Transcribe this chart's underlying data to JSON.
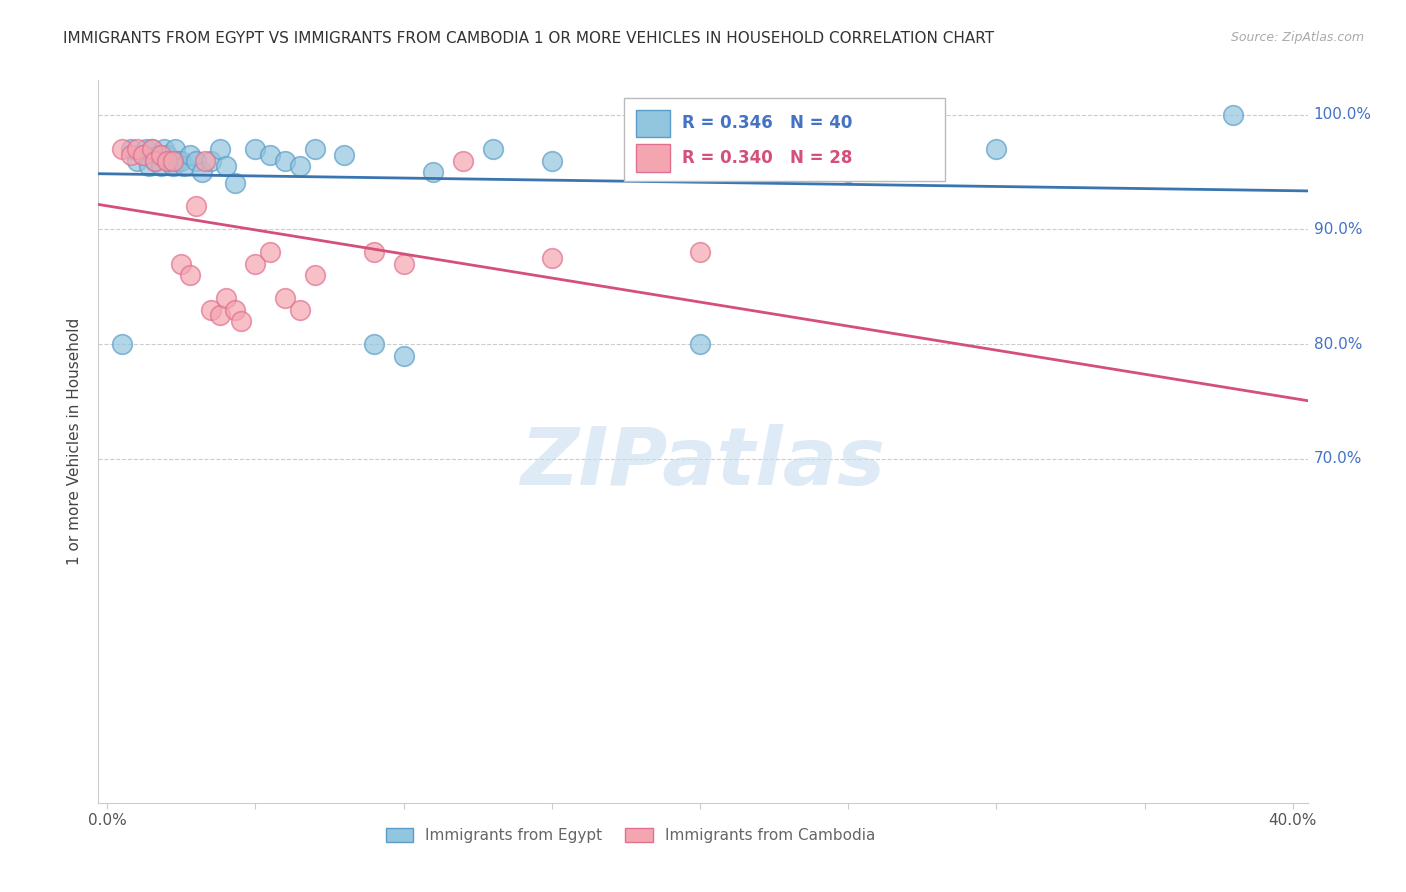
{
  "title": "IMMIGRANTS FROM EGYPT VS IMMIGRANTS FROM CAMBODIA 1 OR MORE VEHICLES IN HOUSEHOLD CORRELATION CHART",
  "source": "Source: ZipAtlas.com",
  "ylabel": "1 or more Vehicles in Household",
  "xlim": [
    0.0,
    0.4
  ],
  "ylim": [
    0.4,
    1.03
  ],
  "egypt_R": 0.346,
  "egypt_N": 40,
  "cambodia_R": 0.34,
  "cambodia_N": 28,
  "egypt_color": "#92c5de",
  "cambodia_color": "#f4a6b0",
  "egypt_edge_color": "#5b9dc9",
  "cambodia_edge_color": "#e07090",
  "egypt_line_color": "#3a75b0",
  "cambodia_line_color": "#d45078",
  "watermark_color": "#c8dff0",
  "egypt_x": [
    0.005,
    0.008,
    0.01,
    0.012,
    0.013,
    0.014,
    0.015,
    0.016,
    0.017,
    0.018,
    0.019,
    0.02,
    0.021,
    0.022,
    0.023,
    0.024,
    0.025,
    0.026,
    0.028,
    0.03,
    0.032,
    0.035,
    0.038,
    0.04,
    0.043,
    0.05,
    0.055,
    0.06,
    0.065,
    0.07,
    0.08,
    0.09,
    0.1,
    0.11,
    0.13,
    0.15,
    0.2,
    0.25,
    0.3,
    0.38
  ],
  "egypt_y": [
    0.8,
    0.97,
    0.96,
    0.965,
    0.97,
    0.955,
    0.97,
    0.96,
    0.965,
    0.955,
    0.97,
    0.965,
    0.96,
    0.955,
    0.97,
    0.96,
    0.96,
    0.955,
    0.965,
    0.96,
    0.95,
    0.96,
    0.97,
    0.955,
    0.94,
    0.97,
    0.965,
    0.96,
    0.955,
    0.97,
    0.965,
    0.8,
    0.79,
    0.95,
    0.97,
    0.96,
    0.8,
    0.95,
    0.97,
    1.0
  ],
  "cambodia_x": [
    0.005,
    0.008,
    0.01,
    0.012,
    0.015,
    0.016,
    0.018,
    0.02,
    0.022,
    0.025,
    0.028,
    0.03,
    0.033,
    0.035,
    0.038,
    0.04,
    0.043,
    0.045,
    0.05,
    0.055,
    0.06,
    0.065,
    0.07,
    0.09,
    0.1,
    0.12,
    0.15,
    0.2
  ],
  "cambodia_y": [
    0.97,
    0.965,
    0.97,
    0.965,
    0.97,
    0.96,
    0.965,
    0.96,
    0.96,
    0.87,
    0.86,
    0.92,
    0.96,
    0.83,
    0.825,
    0.84,
    0.83,
    0.82,
    0.87,
    0.88,
    0.84,
    0.83,
    0.86,
    0.88,
    0.87,
    0.96,
    0.875,
    0.88
  ],
  "grid_color": "#cccccc",
  "spine_color": "#cccccc",
  "background_color": "#ffffff",
  "title_color": "#333333",
  "source_color": "#aaaaaa",
  "ylabel_color": "#444444",
  "ytick_right_color": "#4472c4",
  "xtick_color": "#555555",
  "legend_text_egypt_color": "#4472c4",
  "legend_text_cambodia_color": "#d45078",
  "bottom_legend_color": "#666666"
}
